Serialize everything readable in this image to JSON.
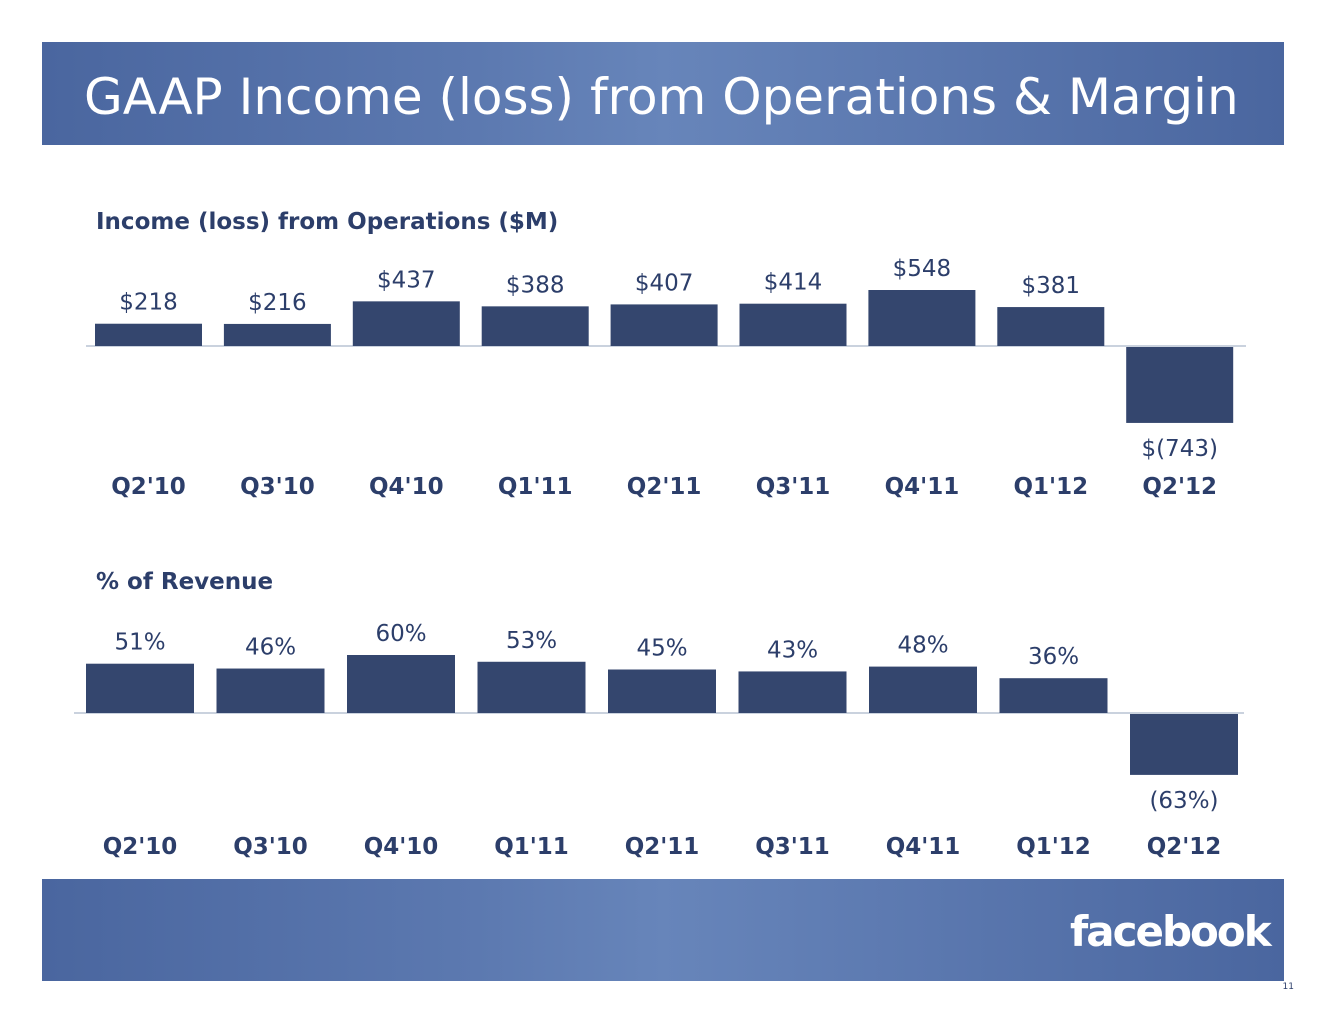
{
  "title": "GAAP Income (loss) from Operations & Margin",
  "logo": "facebook",
  "page_number": "11",
  "colors": {
    "bar": "#34466e",
    "band": "#5571a9",
    "text": "#2c3e6a"
  },
  "chart_data": [
    {
      "type": "bar",
      "title": "Income (loss) from Operations ($M)",
      "categories": [
        "Q2'10",
        "Q3'10",
        "Q4'10",
        "Q1'11",
        "Q2'11",
        "Q3'11",
        "Q4'11",
        "Q1'12",
        "Q2'12"
      ],
      "values": [
        218,
        216,
        437,
        388,
        407,
        414,
        548,
        381,
        -743
      ],
      "labels": [
        "$218",
        "$216",
        "$437",
        "$388",
        "$407",
        "$414",
        "$548",
        "$381",
        "$(743)"
      ]
    },
    {
      "type": "bar",
      "title": "% of Revenue",
      "categories": [
        "Q2'10",
        "Q3'10",
        "Q4'10",
        "Q1'11",
        "Q2'11",
        "Q3'11",
        "Q4'11",
        "Q1'12",
        "Q2'12"
      ],
      "values": [
        51,
        46,
        60,
        53,
        45,
        43,
        48,
        36,
        -63
      ],
      "labels": [
        "51%",
        "46%",
        "60%",
        "53%",
        "45%",
        "43%",
        "48%",
        "36%",
        "(63%)"
      ]
    }
  ]
}
